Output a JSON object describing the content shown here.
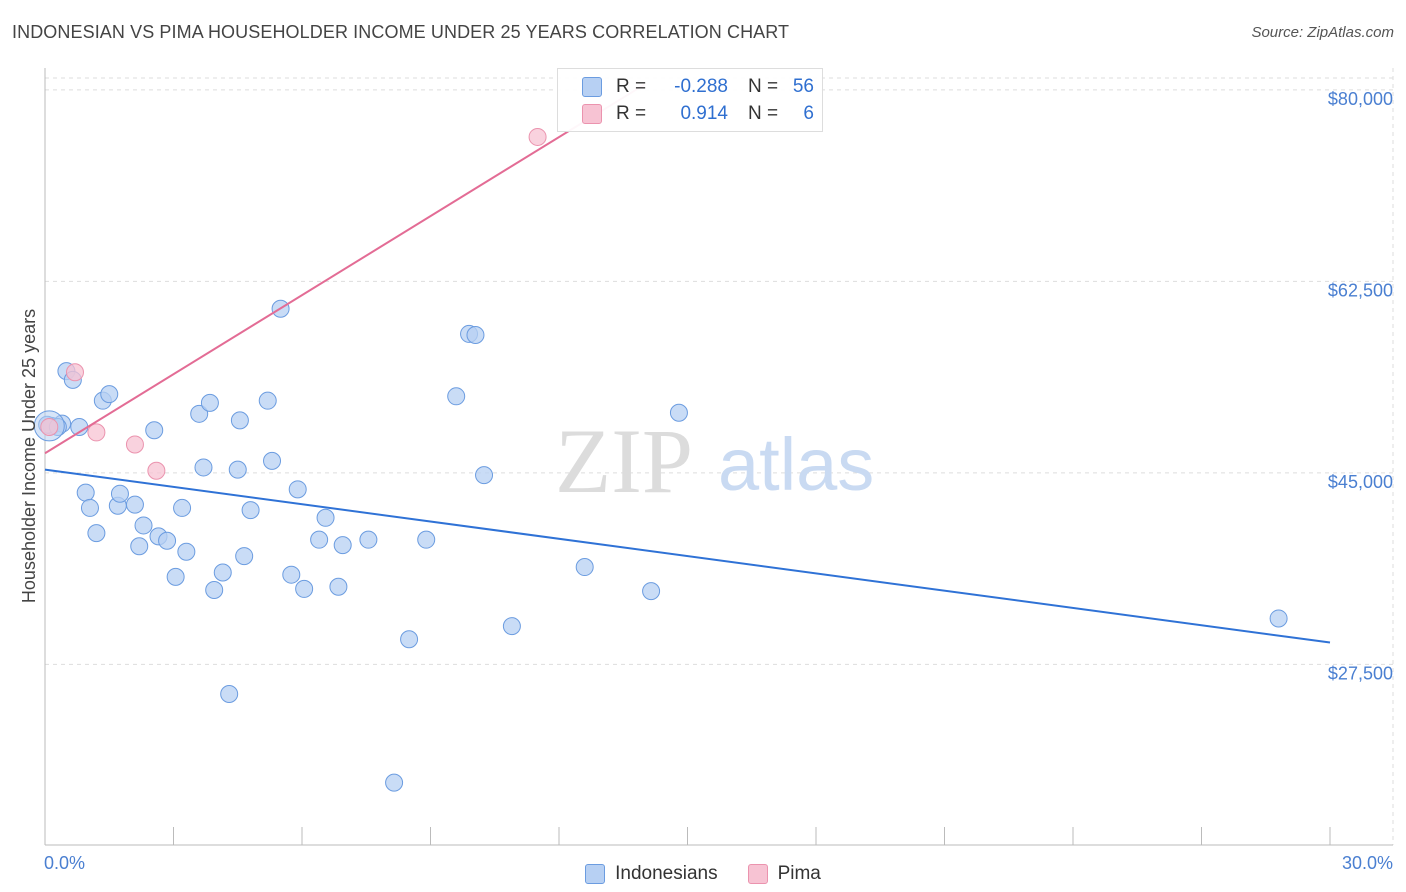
{
  "header": {
    "title": "INDONESIAN VS PIMA HOUSEHOLDER INCOME UNDER 25 YEARS CORRELATION CHART",
    "source": "Source: ZipAtlas.com"
  },
  "watermark": {
    "zip": "ZIP",
    "atlas": "atlas"
  },
  "colors": {
    "indonesian_fill": "#b7d0f3",
    "indonesian_stroke": "#6b9ce0",
    "indonesian_line": "#2f72d6",
    "pima_fill": "#f7c3d3",
    "pima_stroke": "#eb93ae",
    "pima_line": "#e36c95"
  },
  "stats": {
    "indonesian": {
      "r_label": "R =",
      "r": "-0.288",
      "n_label": "N =",
      "n": "56"
    },
    "pima": {
      "r_label": "R =",
      "r": "0.914",
      "n_label": "N =",
      "n": "6"
    }
  },
  "legend": {
    "indonesians": "Indonesians",
    "pima": "Pima"
  },
  "chart_data": {
    "type": "scatter",
    "title": "INDONESIAN VS PIMA HOUSEHOLDER INCOME UNDER 25 YEARS CORRELATION CHART",
    "xlabel": "",
    "ylabel": "Householder Income Under 25 years",
    "xlim": [
      0,
      30
    ],
    "ylim": [
      11000,
      82000
    ],
    "x_tick_labels": [
      "0.0%",
      "30.0%"
    ],
    "y_ticks": [
      27500,
      45000,
      62500,
      80000
    ],
    "y_tick_labels": [
      "$27,500",
      "$45,000",
      "$62,500",
      "$80,000"
    ],
    "grid": true,
    "series": [
      {
        "name": "Indonesians",
        "points": [
          [
            0.15,
            49300
          ],
          [
            0.4,
            49500
          ],
          [
            0.5,
            54300
          ],
          [
            0.65,
            53500
          ],
          [
            0.8,
            49200
          ],
          [
            0.95,
            43200
          ],
          [
            1.05,
            41800
          ],
          [
            1.2,
            39500
          ],
          [
            1.35,
            51600
          ],
          [
            1.5,
            52200
          ],
          [
            1.7,
            42000
          ],
          [
            1.75,
            43100
          ],
          [
            2.1,
            42100
          ],
          [
            2.2,
            38300
          ],
          [
            2.3,
            40200
          ],
          [
            2.55,
            48900
          ],
          [
            2.65,
            39200
          ],
          [
            2.85,
            38800
          ],
          [
            3.05,
            35500
          ],
          [
            3.2,
            41800
          ],
          [
            3.3,
            37800
          ],
          [
            3.6,
            50400
          ],
          [
            3.7,
            45500
          ],
          [
            3.85,
            51400
          ],
          [
            3.95,
            34300
          ],
          [
            4.15,
            35900
          ],
          [
            4.5,
            45300
          ],
          [
            4.55,
            49800
          ],
          [
            4.65,
            37400
          ],
          [
            4.8,
            41600
          ],
          [
            5.2,
            51600
          ],
          [
            5.3,
            46100
          ],
          [
            5.5,
            60000
          ],
          [
            5.75,
            35700
          ],
          [
            5.9,
            43500
          ],
          [
            6.05,
            34400
          ],
          [
            6.4,
            38900
          ],
          [
            6.55,
            40900
          ],
          [
            6.85,
            34600
          ],
          [
            6.95,
            38400
          ],
          [
            7.55,
            38900
          ],
          [
            8.5,
            29800
          ],
          [
            8.9,
            38900
          ],
          [
            9.6,
            52000
          ],
          [
            9.9,
            57700
          ],
          [
            10.05,
            57600
          ],
          [
            10.25,
            44800
          ],
          [
            10.9,
            31000
          ],
          [
            12.6,
            36400
          ],
          [
            14.15,
            34200
          ],
          [
            14.8,
            50500
          ],
          [
            28.8,
            31700
          ],
          [
            0.05,
            49400
          ],
          [
            0.3,
            49200
          ],
          [
            4.3,
            24800
          ],
          [
            8.15,
            16700
          ]
        ]
      },
      {
        "name": "Pima",
        "points": [
          [
            0.1,
            49200
          ],
          [
            0.7,
            54200
          ],
          [
            1.2,
            48700
          ],
          [
            2.1,
            47600
          ],
          [
            2.6,
            45200
          ],
          [
            11.5,
            75700
          ]
        ]
      }
    ],
    "trendlines": [
      {
        "series": "Indonesians",
        "x": [
          0,
          30
        ],
        "y": [
          45300,
          29500
        ]
      },
      {
        "series": "Pima",
        "x": [
          0,
          14
        ],
        "y": [
          46800,
          80500
        ]
      }
    ]
  }
}
